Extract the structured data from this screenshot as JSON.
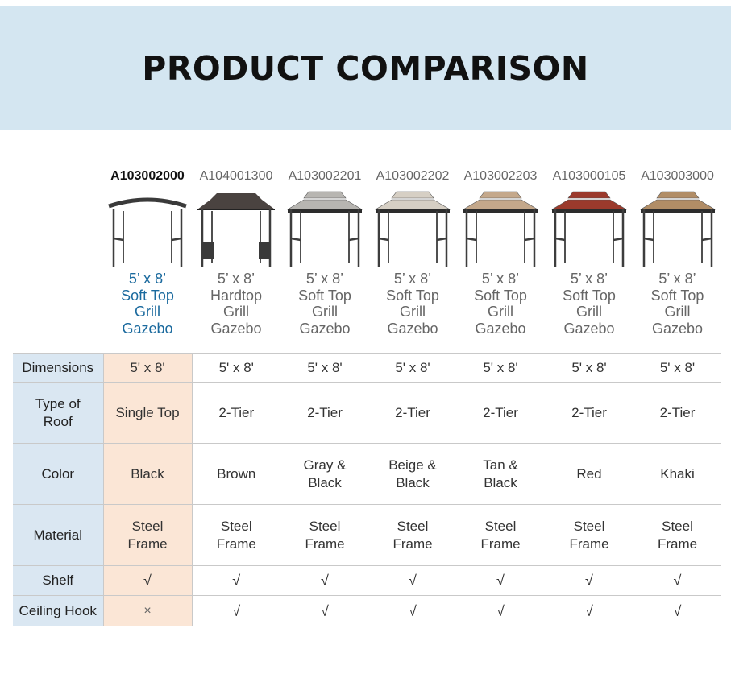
{
  "page": {
    "title": "PRODUCT COMPARISON",
    "colors": {
      "banner": "#d4e6f1",
      "label_column": "#dae7f2",
      "highlight_column": "#fbe6d6",
      "main_product_name": "#1b6a9e"
    }
  },
  "products": [
    {
      "code": "A103002000",
      "name": "5’ x 8’\nSoft Top\nGrill\nGazebo",
      "image": "gazebo-single-top-black-icon"
    },
    {
      "code": "A104001300",
      "name": "5’ x 8’\nHardtop\nGrill\nGazebo",
      "image": "gazebo-hardtop-brown-icon"
    },
    {
      "code": "A103002201",
      "name": "5’ x 8’\nSoft Top\nGrill\nGazebo",
      "image": "gazebo-gray-black-icon"
    },
    {
      "code": "A103002202",
      "name": "5’ x 8’\nSoft Top\nGrill\nGazebo",
      "image": "gazebo-beige-black-icon"
    },
    {
      "code": "A103002203",
      "name": "5’ x 8’\nSoft Top\nGrill\nGazebo",
      "image": "gazebo-tan-black-icon"
    },
    {
      "code": "A103000105",
      "name": "5’ x 8’\nSoft Top\nGrill\nGazebo",
      "image": "gazebo-red-icon"
    },
    {
      "code": "A103003000",
      "name": "5’ x 8’\nSoft Top\nGrill\nGazebo",
      "image": "gazebo-khaki-icon"
    }
  ],
  "rows": [
    {
      "label": "Dimensions",
      "values": [
        "5' x 8'",
        "5' x 8'",
        "5' x 8'",
        "5' x 8'",
        "5' x 8'",
        "5' x 8'",
        "5' x 8'"
      ]
    },
    {
      "label": "Type of\nRoof",
      "values": [
        "Single Top",
        "2-Tier",
        "2-Tier",
        "2-Tier",
        "2-Tier",
        "2-Tier",
        "2-Tier"
      ]
    },
    {
      "label": "Color",
      "values": [
        "Black",
        "Brown",
        "Gray &\nBlack",
        "Beige &\nBlack",
        "Tan &\nBlack",
        "Red",
        "Khaki"
      ]
    },
    {
      "label": "Material",
      "values": [
        "Steel\nFrame",
        "Steel\nFrame",
        "Steel\nFrame",
        "Steel\nFrame",
        "Steel\nFrame",
        "Steel\nFrame",
        "Steel\nFrame"
      ]
    },
    {
      "label": "Shelf",
      "values": [
        "√",
        "√",
        "√",
        "√",
        "√",
        "√",
        "√"
      ]
    },
    {
      "label": "Ceiling Hook",
      "values": [
        "×",
        "√",
        "√",
        "√",
        "√",
        "√",
        "√"
      ]
    }
  ]
}
